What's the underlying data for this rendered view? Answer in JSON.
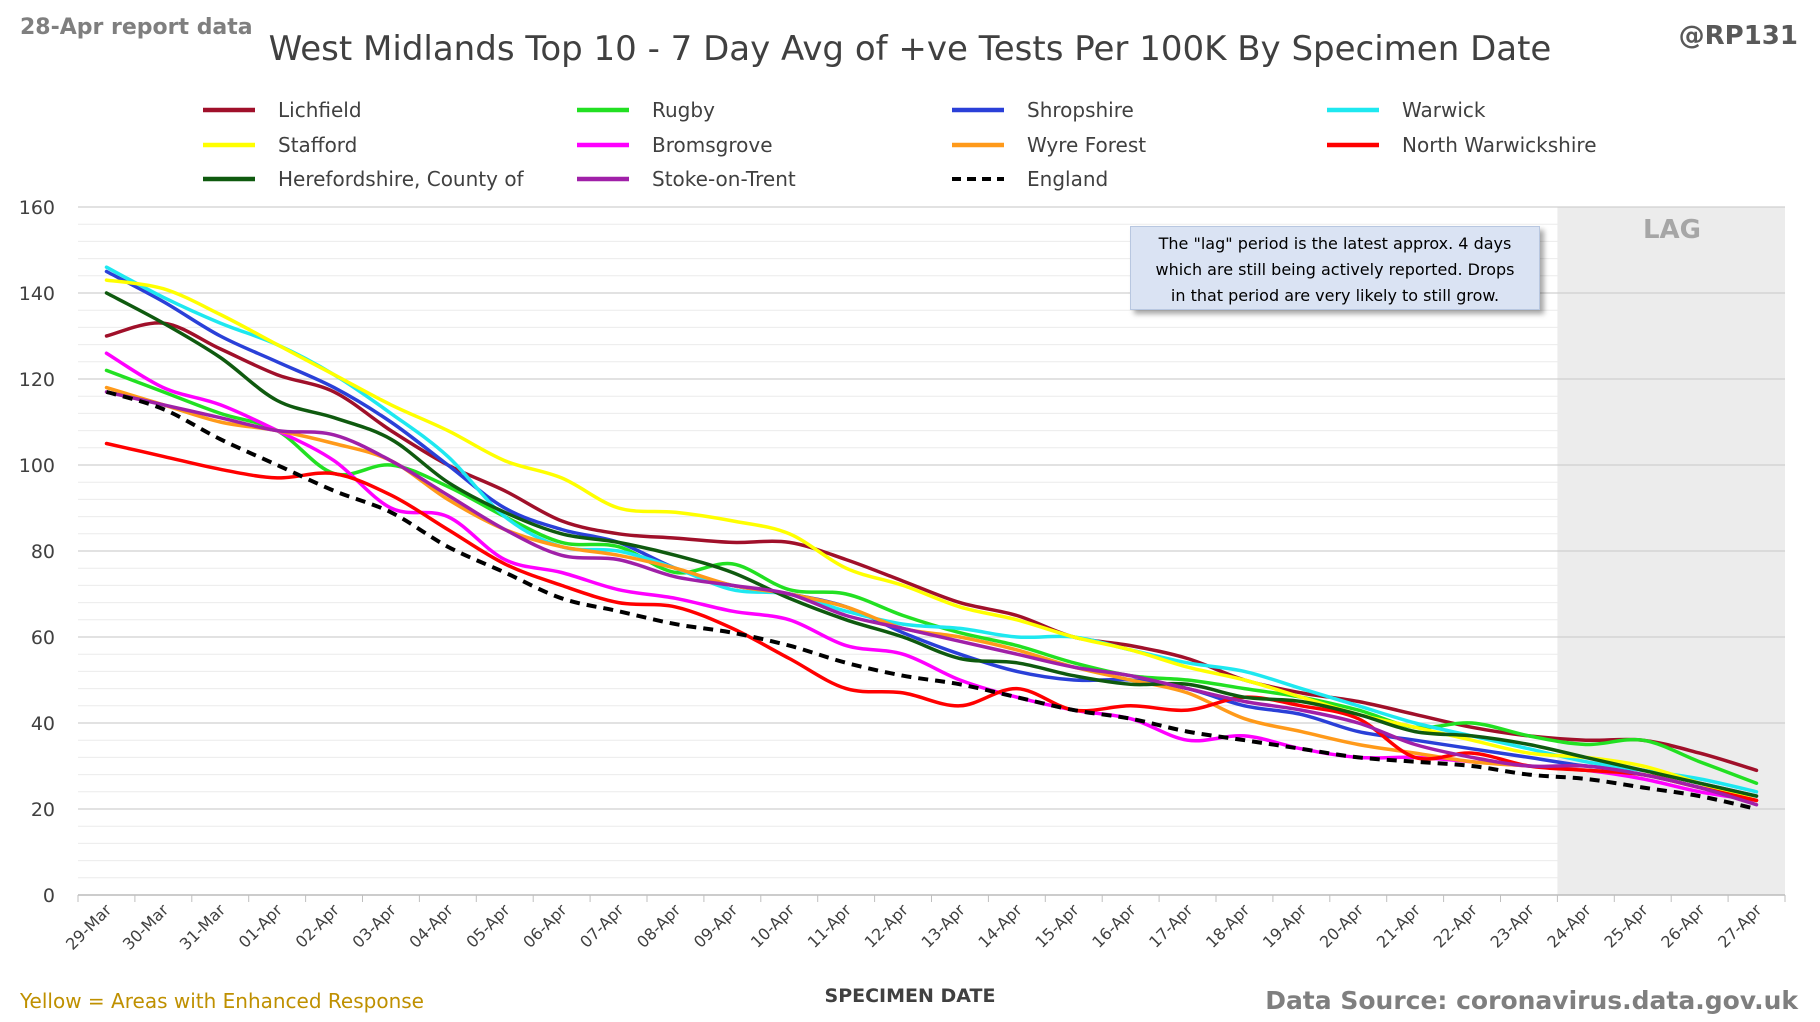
{
  "header": {
    "report_label": "28-Apr report data",
    "handle": "@RP131"
  },
  "footer": {
    "enhanced_note": "Yellow = Areas with Enhanced Response",
    "source": "Data Source: coronavirus.data.gov.uk"
  },
  "annotation": {
    "lag_label": "LAG",
    "lines": [
      "The \"lag\" period is the latest approx. 4 days",
      "which are still being actively reported.  Drops",
      "in that period are very likely to still grow."
    ]
  },
  "colors": {
    "enhanced_note": "#bf9000",
    "report_label": "#7f7f7f",
    "handle": "#595959",
    "lag_band": "#ececec"
  },
  "chart_data": {
    "type": "line",
    "title": "West Midlands Top 10 - 7 Day Avg of +ve Tests Per 100K By Specimen Date",
    "xlabel": "SPECIMEN DATE",
    "ylabel": "",
    "ylim": [
      0,
      160
    ],
    "yticks": [
      0,
      20,
      40,
      60,
      80,
      100,
      120,
      140,
      160
    ],
    "grid": true,
    "legend_position": "top",
    "lag_start": "24-Apr",
    "x": [
      "29-Mar",
      "30-Mar",
      "31-Mar",
      "01-Apr",
      "02-Apr",
      "03-Apr",
      "04-Apr",
      "05-Apr",
      "06-Apr",
      "07-Apr",
      "08-Apr",
      "09-Apr",
      "10-Apr",
      "11-Apr",
      "12-Apr",
      "13-Apr",
      "14-Apr",
      "15-Apr",
      "16-Apr",
      "17-Apr",
      "18-Apr",
      "19-Apr",
      "20-Apr",
      "21-Apr",
      "22-Apr",
      "23-Apr",
      "24-Apr",
      "25-Apr",
      "26-Apr",
      "27-Apr"
    ],
    "series": [
      {
        "name": "Lichfield",
        "color": "#a0102a",
        "dashed": false,
        "values": [
          130,
          133,
          127,
          121,
          117,
          108,
          100,
          94,
          87,
          84,
          83,
          82,
          82,
          78,
          73,
          68,
          65,
          60,
          58,
          55,
          50,
          47,
          45,
          42,
          39,
          37,
          36,
          36,
          33,
          29
        ]
      },
      {
        "name": "Rugby",
        "color": "#22e022",
        "dashed": false,
        "values": [
          122,
          117,
          112,
          108,
          98,
          100,
          95,
          88,
          82,
          81,
          75,
          77,
          71,
          70,
          65,
          61,
          58,
          54,
          51,
          50,
          48,
          46,
          43,
          39,
          40,
          37,
          35,
          36,
          31,
          26
        ]
      },
      {
        "name": "Shropshire",
        "color": "#2a40d8",
        "dashed": false,
        "values": [
          145,
          138,
          130,
          124,
          118,
          110,
          100,
          90,
          85,
          82,
          76,
          72,
          70,
          67,
          61,
          56,
          52,
          50,
          50,
          48,
          44,
          42,
          38,
          36,
          34,
          32,
          30,
          29,
          26,
          23
        ]
      },
      {
        "name": "Warwick",
        "color": "#1ee8f0",
        "dashed": false,
        "values": [
          146,
          139,
          133,
          128,
          121,
          112,
          102,
          88,
          81,
          80,
          76,
          71,
          70,
          66,
          63,
          62,
          60,
          60,
          57,
          54,
          52,
          48,
          44,
          40,
          37,
          34,
          31,
          29,
          27,
          24
        ]
      },
      {
        "name": "Stafford",
        "color": "#ffff00",
        "dashed": false,
        "values": [
          143,
          141,
          135,
          128,
          121,
          114,
          108,
          101,
          97,
          90,
          89,
          87,
          84,
          76,
          72,
          67,
          64,
          60,
          57,
          53,
          50,
          46,
          42,
          39,
          36,
          33,
          32,
          30,
          26,
          22
        ]
      },
      {
        "name": "Bromsgrove",
        "color": "#ff00ff",
        "dashed": false,
        "values": [
          126,
          118,
          114,
          108,
          101,
          90,
          88,
          78,
          75,
          71,
          69,
          66,
          64,
          58,
          56,
          50,
          46,
          43,
          41,
          36,
          37,
          34,
          32,
          32,
          31,
          30,
          29,
          27,
          24,
          22
        ]
      },
      {
        "name": "Wyre Forest",
        "color": "#ff9a1a",
        "dashed": false,
        "values": [
          118,
          114,
          110,
          108,
          105,
          101,
          92,
          85,
          81,
          79,
          76,
          72,
          70,
          67,
          62,
          60,
          57,
          53,
          50,
          47,
          41,
          38,
          35,
          33,
          31,
          30,
          29,
          28,
          25,
          22
        ]
      },
      {
        "name": "North Warwickshire",
        "color": "#ff0000",
        "dashed": false,
        "values": [
          105,
          102,
          99,
          97,
          98,
          93,
          85,
          77,
          72,
          68,
          67,
          62,
          55,
          48,
          47,
          44,
          48,
          43,
          44,
          43,
          46,
          44,
          41,
          32,
          33,
          30,
          29,
          28,
          25,
          22
        ]
      },
      {
        "name": "Herefordshire, County of",
        "color": "#0f5a0f",
        "dashed": false,
        "values": [
          140,
          133,
          125,
          115,
          111,
          106,
          96,
          89,
          84,
          82,
          79,
          75,
          69,
          64,
          60,
          55,
          54,
          51,
          49,
          49,
          46,
          45,
          42,
          38,
          37,
          35,
          32,
          29,
          26,
          23
        ]
      },
      {
        "name": "Stoke-on-Trent",
        "color": "#a020a8",
        "dashed": false,
        "values": [
          117,
          114,
          111,
          108,
          107,
          101,
          93,
          85,
          79,
          78,
          74,
          72,
          70,
          65,
          62,
          59,
          56,
          53,
          51,
          48,
          45,
          43,
          40,
          35,
          32,
          30,
          30,
          28,
          25,
          21
        ]
      },
      {
        "name": "England",
        "color": "#000000",
        "dashed": true,
        "values": [
          117,
          113,
          106,
          100,
          94,
          89,
          81,
          75,
          69,
          66,
          63,
          61,
          58,
          54,
          51,
          49,
          46,
          43,
          41,
          38,
          36,
          34,
          32,
          31,
          30,
          28,
          27,
          25,
          23,
          20
        ]
      }
    ]
  }
}
